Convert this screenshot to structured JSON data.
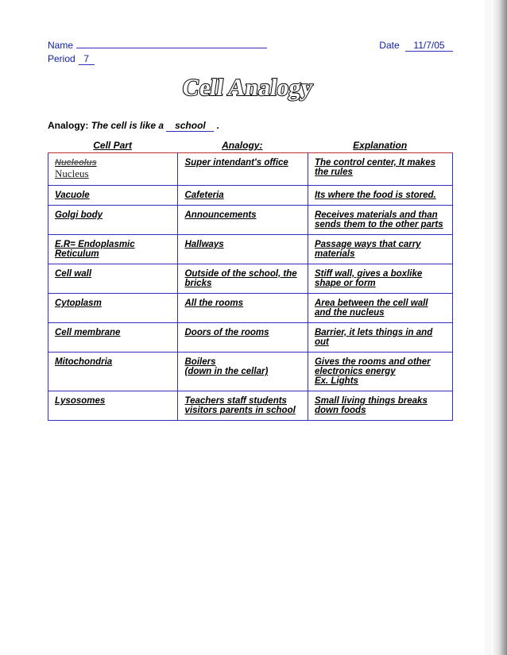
{
  "header": {
    "name_label": "Name",
    "date_label": "Date",
    "date_value": "11/7/05",
    "period_label": "Period",
    "period_value": "7"
  },
  "title": {
    "text": "Cell Analogy",
    "fill": "#ffffff",
    "stroke": "#000000",
    "font_family": "Times New Roman, serif",
    "font_size": 30,
    "skew_deg": -8
  },
  "analogy_sentence": {
    "prefix": "Analogy:",
    "sentence_before": "The cell is like a",
    "fill_in": "school",
    "sentence_after": "."
  },
  "columns": {
    "col1": "Cell Part",
    "col2": "Analogy:",
    "col3": "Explanation"
  },
  "rows": [
    {
      "cell_part_scribble": "Nucleolus",
      "cell_part_hand": "Nucleus",
      "analogy": "Super intendant's office",
      "explanation": "The control center, It makes the rules"
    },
    {
      "cell_part": "Vacuole",
      "analogy": "Cafeteria",
      "explanation": "Its where the food is stored."
    },
    {
      "cell_part": "Golgi body",
      "analogy": "Announcements",
      "explanation": "Receives materials and than sends them to the other parts"
    },
    {
      "cell_part": "E.R= Endoplasmic Reticulum",
      "analogy": "Hallways",
      "explanation": " Passage ways that carry materials"
    },
    {
      "cell_part": "Cell wall",
      "analogy": "Outside of the school, the bricks",
      "explanation": "Stiff wall, gives a boxlike shape or form"
    },
    {
      "cell_part": "Cytoplasm",
      "analogy": "All the rooms",
      "explanation": "Area between the cell wall and the nucleus"
    },
    {
      "cell_part": "Cell membrane",
      "analogy": "Doors of the rooms",
      "explanation": "Barrier, it lets things in and out"
    },
    {
      "cell_part": "Mitochondria",
      "analogy": "Boilers\n (down in the cellar)",
      "explanation": "Gives the rooms and other electronics energy\nEx. Lights"
    },
    {
      "cell_part": "Lysosomes",
      "analogy": "Teachers staff students visitors parents in school",
      "explanation": "Small living things breaks down foods"
    }
  ],
  "style": {
    "page_bg": "#ffffff",
    "text_color": "#000000",
    "header_color": "#1020a0",
    "border_colors": [
      "#c03030",
      "#c08000",
      "#208020",
      "#3030c0"
    ]
  }
}
